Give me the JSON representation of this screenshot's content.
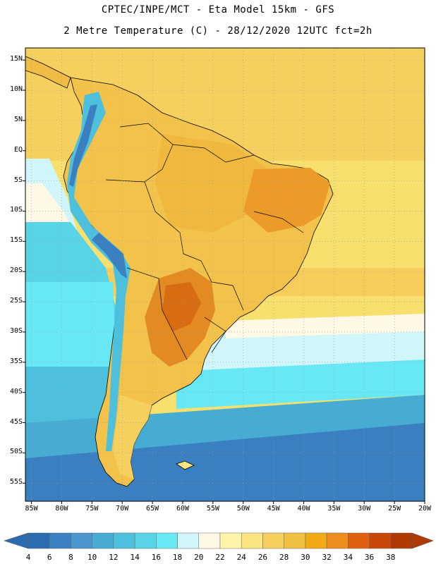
{
  "header": {
    "line1": "CPTEC/INPE/MCT - Eta Model 15km - GFS",
    "line2": "2 Metre Temperature (C) - 28/12/2020 12UTC fct=2h"
  },
  "axes": {
    "lat_labels": [
      "15N",
      "10N",
      "5N",
      "EQ",
      "5S",
      "10S",
      "15S",
      "20S",
      "25S",
      "30S",
      "35S",
      "40S",
      "45S",
      "50S",
      "55S"
    ],
    "lat_values": [
      15,
      10,
      5,
      0,
      -5,
      -10,
      -15,
      -20,
      -25,
      -30,
      -35,
      -40,
      -45,
      -50,
      -55
    ],
    "lon_labels": [
      "85W",
      "80W",
      "75W",
      "70W",
      "65W",
      "60W",
      "55W",
      "50W",
      "45W",
      "40W",
      "35W",
      "30W",
      "25W",
      "20W"
    ],
    "lon_values": [
      -85,
      -80,
      -75,
      -70,
      -65,
      -60,
      -55,
      -50,
      -45,
      -40,
      -35,
      -30,
      -25,
      -20
    ],
    "lat_range": [
      -58,
      17
    ],
    "lon_range": [
      -86,
      -20
    ]
  },
  "colorbar": {
    "labels": [
      "4",
      "6",
      "8",
      "10",
      "12",
      "14",
      "16",
      "18",
      "20",
      "22",
      "24",
      "26",
      "28",
      "30",
      "32",
      "34",
      "36",
      "38"
    ],
    "colors": [
      "#2b6cb0",
      "#3a80c0",
      "#4a96cc",
      "#46acd4",
      "#4cc0dc",
      "#58d4e6",
      "#68e8f4",
      "#d0f6fa",
      "#fff8e6",
      "#fff4a8",
      "#fde482",
      "#f6d05e",
      "#f0c040",
      "#f2aa14",
      "#ee8c1c",
      "#e06010",
      "#c84808",
      "#b03a04"
    ]
  }
}
